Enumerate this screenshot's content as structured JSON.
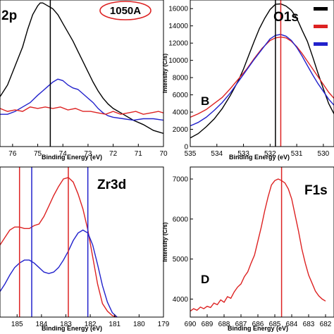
{
  "chart_data": [
    {
      "panel": "A",
      "type": "line",
      "title": "2p",
      "xlabel": "Binding Energy (eV)",
      "ylabel": "",
      "xlim": [
        76.5,
        70
      ],
      "xticks": [
        76,
        75,
        74,
        73,
        72,
        71,
        70
      ],
      "ylim": [
        0,
        100
      ],
      "badge": "1050A",
      "vlines": [
        {
          "x": 74.5,
          "color": "#000000"
        }
      ],
      "series": [
        {
          "color": "#000000",
          "x": [
            76.5,
            76.2,
            75.9,
            75.6,
            75.4,
            75.2,
            75.0,
            74.9,
            74.8,
            74.7,
            74.6,
            74.5,
            74.4,
            74.3,
            74.2,
            74.1,
            74.0,
            73.8,
            73.6,
            73.4,
            73.2,
            73.0,
            72.8,
            72.6,
            72.4,
            72.2,
            72.0,
            71.6,
            71.2,
            70.8,
            70.4,
            70.0
          ],
          "y": [
            34,
            42,
            55,
            68,
            80,
            90,
            96,
            98,
            98,
            97,
            96,
            95,
            94,
            92,
            90,
            87,
            84,
            78,
            72,
            65,
            58,
            51,
            44,
            38,
            33,
            29,
            26,
            22,
            18,
            15,
            11,
            9
          ]
        },
        {
          "color": "#2222cc",
          "x": [
            76.5,
            76.2,
            75.9,
            75.6,
            75.3,
            75.0,
            74.8,
            74.6,
            74.4,
            74.2,
            74.0,
            73.8,
            73.6,
            73.4,
            73.2,
            73.0,
            72.8,
            72.6,
            72.4,
            72.2,
            72.0,
            71.6,
            71.2,
            70.8,
            70.4,
            70.0
          ],
          "y": [
            22,
            22,
            24,
            27,
            30,
            35,
            38,
            41,
            44,
            46,
            45,
            42,
            40,
            39,
            36,
            33,
            30,
            26,
            23,
            21,
            20,
            19,
            18,
            19,
            19,
            18
          ]
        },
        {
          "color": "#dd2222",
          "x": [
            76.5,
            76.2,
            75.9,
            75.6,
            75.3,
            75.0,
            74.7,
            74.4,
            74.1,
            73.8,
            73.5,
            73.2,
            72.9,
            72.6,
            72.3,
            72.0,
            71.7,
            71.4,
            71.1,
            70.8,
            70.5,
            70.2,
            70.0
          ],
          "y": [
            26,
            24,
            25,
            24,
            27,
            26,
            27,
            26,
            27,
            25,
            26,
            24,
            24,
            23,
            22,
            24,
            22,
            23,
            24,
            22,
            23,
            24,
            23
          ]
        }
      ]
    },
    {
      "panel": "B",
      "type": "line",
      "title": "O1s",
      "letter": "B",
      "xlabel": "Binding Energy (eV)",
      "ylabel": "Intensity (C/s)",
      "xlim": [
        535,
        529.6
      ],
      "xticks": [
        535,
        534,
        533,
        532,
        531,
        530
      ],
      "ylim": [
        0,
        17000
      ],
      "yticks": [
        0,
        2000,
        4000,
        6000,
        8000,
        10000,
        12000,
        14000,
        16000
      ],
      "legend_colors": [
        "#000000",
        "#dd2222",
        "#2222cc"
      ],
      "vlines": [
        {
          "x": 531.8,
          "color": "#000000"
        },
        {
          "x": 531.6,
          "color": "#dd2222"
        }
      ],
      "series": [
        {
          "color": "#000000",
          "x": [
            535,
            534.7,
            534.4,
            534.1,
            533.8,
            533.5,
            533.2,
            533.0,
            532.8,
            532.6,
            532.4,
            532.2,
            532.0,
            531.8,
            531.6,
            531.4,
            531.2,
            531.0,
            530.8,
            530.6,
            530.4,
            530.2,
            530.0,
            529.8,
            529.6
          ],
          "y": [
            1000,
            1500,
            2300,
            3200,
            4400,
            5900,
            7600,
            9000,
            10600,
            12200,
            13700,
            14900,
            15900,
            16500,
            16550,
            16300,
            15800,
            14900,
            13500,
            12200,
            10400,
            8500,
            6700,
            5000,
            3800
          ]
        },
        {
          "color": "#dd2222",
          "x": [
            535,
            534.7,
            534.4,
            534.1,
            533.8,
            533.5,
            533.2,
            532.9,
            532.6,
            532.3,
            532.0,
            531.8,
            531.6,
            531.4,
            531.2,
            531.0,
            530.8,
            530.6,
            530.4,
            530.2,
            530.0,
            529.8,
            529.6
          ],
          "y": [
            3400,
            3800,
            4300,
            5000,
            5700,
            6700,
            7800,
            8900,
            10200,
            11400,
            12300,
            12600,
            12700,
            12600,
            12200,
            11600,
            10800,
            9900,
            9000,
            8100,
            7200,
            6300,
            5600
          ]
        },
        {
          "color": "#2222cc",
          "x": [
            535,
            534.7,
            534.4,
            534.1,
            533.8,
            533.5,
            533.2,
            532.9,
            532.6,
            532.3,
            532.0,
            531.8,
            531.6,
            531.4,
            531.2,
            531.0,
            530.8,
            530.6,
            530.4,
            530.2,
            530.0,
            529.8,
            529.6
          ],
          "y": [
            2400,
            2800,
            3400,
            4200,
            5100,
            6200,
            7500,
            8800,
            10100,
            11300,
            12500,
            12900,
            13000,
            12800,
            12300,
            11500,
            10500,
            9400,
            8300,
            7300,
            6400,
            5500,
            4800
          ]
        }
      ]
    },
    {
      "panel": "C",
      "type": "line",
      "title": "Zr3d",
      "xlabel": "Binding Energy (eV)",
      "ylabel": "",
      "xlim": [
        185.7,
        179
      ],
      "xticks": [
        185,
        184,
        183,
        182,
        181,
        180,
        179
      ],
      "ylim": [
        0,
        100
      ],
      "vlines": [
        {
          "x": 184.9,
          "color": "#dd2222"
        },
        {
          "x": 184.4,
          "color": "#2222cc"
        },
        {
          "x": 182.9,
          "color": "#dd2222"
        },
        {
          "x": 182.1,
          "color": "#2222cc"
        }
      ],
      "series": [
        {
          "color": "#dd2222",
          "x": [
            185.7,
            185.5,
            185.3,
            185.1,
            184.9,
            184.7,
            184.5,
            184.3,
            184.1,
            183.9,
            183.7,
            183.5,
            183.3,
            183.1,
            182.9,
            182.7,
            182.5,
            182.3,
            182.1,
            181.9,
            181.7,
            181.5,
            181.3,
            181.1,
            180.9
          ],
          "y": [
            48,
            53,
            58,
            60,
            60,
            59,
            59,
            61,
            62,
            67,
            74,
            81,
            87,
            92,
            93,
            90,
            82,
            72,
            58,
            40,
            22,
            9,
            4,
            1,
            0
          ]
        },
        {
          "color": "#2222cc",
          "x": [
            185.7,
            185.5,
            185.3,
            185.1,
            184.9,
            184.7,
            184.5,
            184.3,
            184.1,
            183.9,
            183.7,
            183.5,
            183.3,
            183.1,
            182.9,
            182.7,
            182.5,
            182.3,
            182.1,
            181.9,
            181.7,
            181.5,
            181.3,
            181.1,
            180.9
          ],
          "y": [
            17,
            22,
            28,
            33,
            36,
            38,
            38,
            36,
            33,
            30,
            29,
            30,
            33,
            38,
            44,
            51,
            56,
            58,
            56,
            48,
            35,
            21,
            10,
            3,
            0
          ]
        }
      ]
    },
    {
      "panel": "D",
      "type": "line",
      "title": "F1s",
      "letter": "D",
      "xlabel": "Binding Energy (eV)",
      "ylabel": "Intensity (C/s)",
      "xlim": [
        690,
        681.5
      ],
      "xticks": [
        690,
        689,
        688,
        687,
        686,
        685,
        684,
        683,
        682
      ],
      "ylim": [
        3550,
        7300
      ],
      "yticks": [
        4000,
        5000,
        6000,
        7000
      ],
      "vlines": [
        {
          "x": 684.6,
          "color": "#dd2222"
        }
      ],
      "series": [
        {
          "color": "#dd2222",
          "x": [
            690,
            689.8,
            689.6,
            689.4,
            689.2,
            689.0,
            688.8,
            688.6,
            688.4,
            688.2,
            688.0,
            687.8,
            687.6,
            687.4,
            687.2,
            687.0,
            686.8,
            686.6,
            686.4,
            686.2,
            686.0,
            685.8,
            685.6,
            685.4,
            685.2,
            685.0,
            684.8,
            684.6,
            684.4,
            684.2,
            684.0,
            683.8,
            683.6,
            683.4,
            683.2,
            683.0,
            682.8,
            682.6,
            682.4,
            682.2,
            682.0
          ],
          "y": [
            3700,
            3760,
            3720,
            3800,
            3760,
            3820,
            3790,
            3900,
            3860,
            3980,
            3920,
            4060,
            4020,
            4180,
            4300,
            4380,
            4560,
            4680,
            4900,
            5100,
            5450,
            5800,
            6200,
            6550,
            6850,
            6960,
            7000,
            6960,
            6900,
            6750,
            6500,
            6100,
            5700,
            5250,
            4900,
            4600,
            4400,
            4200,
            4080,
            4000,
            3950
          ]
        }
      ]
    }
  ]
}
